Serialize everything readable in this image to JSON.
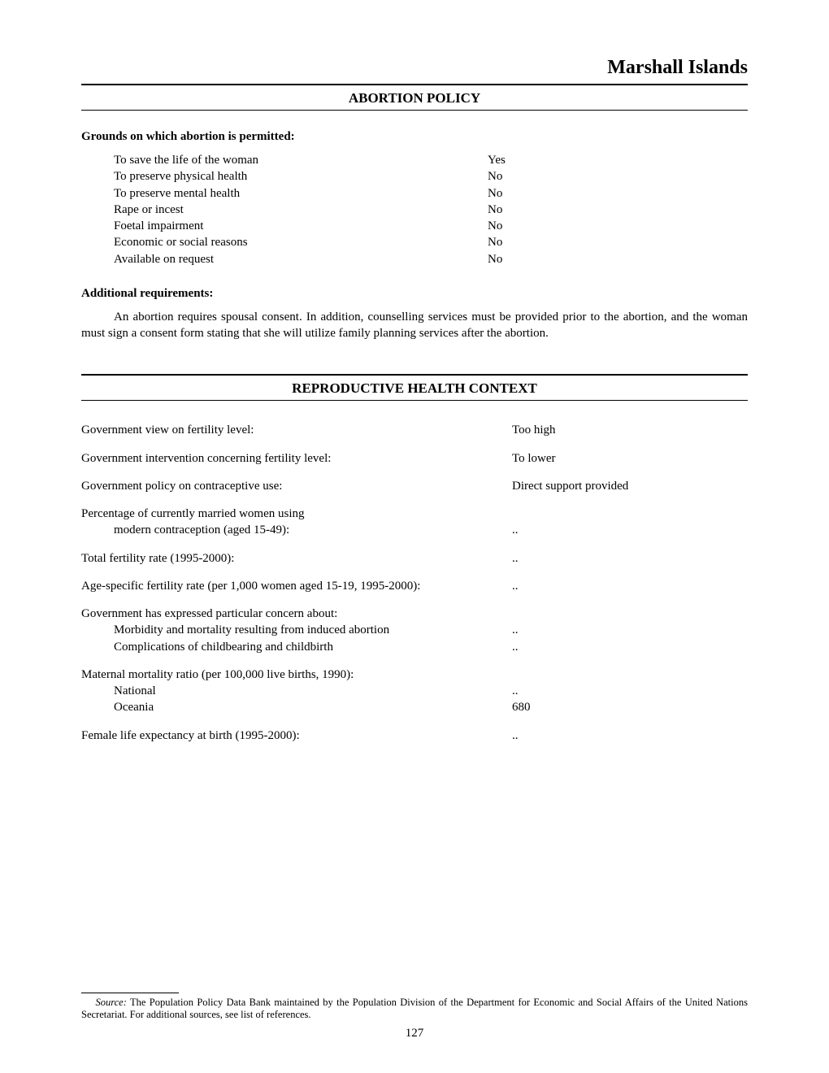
{
  "country": "Marshall Islands",
  "section1": {
    "title": "ABORTION POLICY",
    "grounds_heading": "Grounds on which abortion is permitted:",
    "grounds": [
      {
        "label": "To save the life of the woman",
        "value": "Yes"
      },
      {
        "label": "To preserve physical health",
        "value": "No"
      },
      {
        "label": "To preserve mental health",
        "value": "No"
      },
      {
        "label": "Rape or incest",
        "value": "No"
      },
      {
        "label": "Foetal impairment",
        "value": "No"
      },
      {
        "label": "Economic or social reasons",
        "value": "No"
      },
      {
        "label": "Available on request",
        "value": "No"
      }
    ],
    "additional_heading": "Additional requirements:",
    "additional_text": "An abortion requires spousal consent.  In addition, counselling services must be provided prior to the abortion, and the woman must sign a consent form stating that she will utilize family planning services after the abortion."
  },
  "section2": {
    "title": "REPRODUCTIVE HEALTH CONTEXT",
    "rows": {
      "r1": {
        "label": "Government view on fertility level:",
        "value": "Too high"
      },
      "r2": {
        "label": "Government intervention concerning fertility level:",
        "value": "To lower"
      },
      "r3": {
        "label": "Government policy on contraceptive use:",
        "value": "Direct support provided"
      }
    },
    "multi1": {
      "line1": "Percentage of currently married women using",
      "line2_label": "modern contraception (aged 15-49):",
      "line2_value": ".."
    },
    "r4": {
      "label": "Total fertility rate (1995-2000):",
      "value": ".."
    },
    "r5": {
      "label": "Age-specific fertility rate (per 1,000 women aged 15-19, 1995-2000):",
      "value": ".."
    },
    "multi2": {
      "line1": "Government has expressed particular concern about:",
      "sub1_label": "Morbidity and mortality resulting from induced abortion",
      "sub1_value": "..",
      "sub2_label": "Complications of childbearing and childbirth",
      "sub2_value": ".."
    },
    "multi3": {
      "line1": "Maternal mortality ratio (per 100,000 live births, 1990):",
      "sub1_label": "National",
      "sub1_value": "..",
      "sub2_label": "Oceania",
      "sub2_value": "680"
    },
    "r6": {
      "label": "Female life expectancy at birth (1995-2000):",
      "value": ".."
    }
  },
  "footnote": {
    "source_label": "Source:",
    "text": "  The Population Policy Data Bank maintained by the Population Division of the Department for Economic and Social Affairs of the United Nations Secretariat.  For additional sources, see list of references."
  },
  "page_number": "127"
}
